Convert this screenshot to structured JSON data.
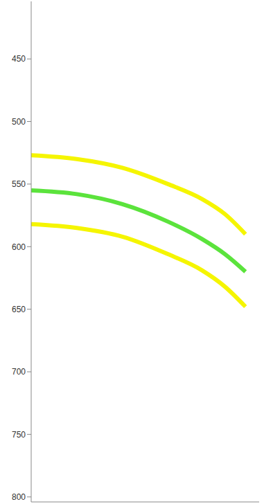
{
  "chart_data": {
    "type": "line",
    "x": [
      0,
      20,
      40,
      60,
      75,
      85,
      94
    ],
    "series": [
      {
        "color": "#f5f500",
        "values": [
          527,
          530,
          537,
          550,
          562,
          574,
          590
        ]
      },
      {
        "color": "#5be33c",
        "values": [
          555,
          558,
          566,
          580,
          594,
          606,
          620
        ]
      },
      {
        "color": "#f5f500",
        "values": [
          582,
          585,
          592,
          606,
          619,
          632,
          648
        ]
      }
    ],
    "xlim": [
      0,
      100
    ],
    "xticks": [],
    "ylim": [
      404,
      804
    ],
    "yticks": [
      450,
      500,
      550,
      600,
      650,
      700,
      750,
      800
    ],
    "tick_labels": "y",
    "grid": false
  }
}
